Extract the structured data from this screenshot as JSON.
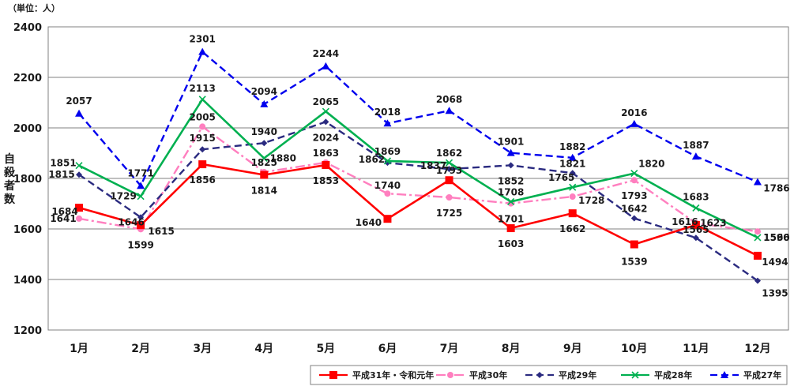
{
  "chart_data": {
    "type": "line",
    "unit_label": "（単位：人）",
    "ylabel": "自殺者数",
    "ylim": [
      1200,
      2400
    ],
    "yticks": [
      1200,
      1400,
      1600,
      1800,
      2000,
      2200,
      2400
    ],
    "grid": true,
    "legend_position": "bottom-right",
    "categories": [
      "1月",
      "2月",
      "3月",
      "4月",
      "5月",
      "6月",
      "7月",
      "8月",
      "9月",
      "10月",
      "11月",
      "12月"
    ],
    "series": [
      {
        "name": "平成31年・令和元年",
        "color": "#ff0000",
        "style": "solid",
        "marker": "square",
        "values": [
          1684,
          1615,
          1856,
          1814,
          1853,
          1640,
          1793,
          1603,
          1662,
          1539,
          1616,
          1494
        ]
      },
      {
        "name": "平成30年",
        "color": "#ff7fbf",
        "style": "dashdot",
        "marker": "circle",
        "values": [
          1641,
          1599,
          2005,
          1825,
          1863,
          1740,
          1725,
          1701,
          1728,
          1793,
          1623,
          1590
        ]
      },
      {
        "name": "平成29年",
        "color": "#2b2b80",
        "style": "dashed",
        "marker": "diamond",
        "values": [
          1815,
          1646,
          1915,
          1940,
          2024,
          1862,
          1837,
          1852,
          1821,
          1642,
          1565,
          1395
        ]
      },
      {
        "name": "平成28年",
        "color": "#00b050",
        "style": "solid",
        "marker": "x",
        "values": [
          1851,
          1729,
          2113,
          1880,
          2065,
          1869,
          1862,
          1708,
          1765,
          1820,
          1683,
          1566
        ]
      },
      {
        "name": "平成27年",
        "color": "#0000ee",
        "style": "dashed",
        "marker": "triangle",
        "values": [
          2057,
          1771,
          2301,
          2094,
          2244,
          2018,
          2068,
          1901,
          1882,
          2016,
          1887,
          1786
        ]
      }
    ]
  }
}
